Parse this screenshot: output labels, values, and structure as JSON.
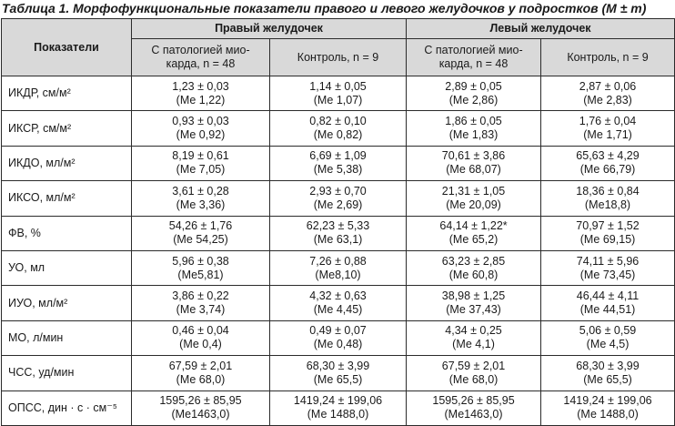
{
  "caption": "Таблица 1. Морфофункциональные показатели правого и левого желудочков у подростков (M ± m)",
  "header": {
    "indicators": "Показатели",
    "right_ventricle": "Правый желудочек",
    "left_ventricle": "Левый желудочек",
    "pathology_line1": "С патологией мио-",
    "pathology_line2": "карда, n = 48",
    "control": "Контроль, n = 9"
  },
  "rows": [
    {
      "label": "ИКДР, см/м²",
      "rv_path": [
        "1,23 ± 0,03",
        "(Ме 1,22)"
      ],
      "rv_ctrl": [
        "1,14 ± 0,05",
        "(Ме 1,07)"
      ],
      "lv_path": [
        "2,89 ± 0,05",
        "(Ме 2,86)"
      ],
      "lv_ctrl": [
        "2,87 ± 0,06",
        "(Ме 2,83)"
      ]
    },
    {
      "label": "ИКСР, см/м²",
      "rv_path": [
        "0,93 ± 0,03",
        "(Ме 0,92)"
      ],
      "rv_ctrl": [
        "0,82 ± 0,10",
        "(Ме 0,82)"
      ],
      "lv_path": [
        "1,86 ± 0,05",
        "(Ме 1,83)"
      ],
      "lv_ctrl": [
        "1,76 ± 0,04",
        "(Ме 1,71)"
      ]
    },
    {
      "label": "ИКДО, мл/м²",
      "rv_path": [
        "8,19 ± 0,61",
        "(Ме 7,05)"
      ],
      "rv_ctrl": [
        "6,69 ± 1,09",
        "(Ме 5,38)"
      ],
      "lv_path": [
        "70,61 ± 3,86",
        "(Ме 68,07)"
      ],
      "lv_ctrl": [
        "65,63 ± 4,29",
        "(Ме 66,79)"
      ]
    },
    {
      "label": "ИКСО, мл/м²",
      "rv_path": [
        "3,61 ± 0,28",
        "(Ме 3,36)"
      ],
      "rv_ctrl": [
        "2,93 ± 0,70",
        "(Ме 2,69)"
      ],
      "lv_path": [
        "21,31 ± 1,05",
        "(Ме 20,09)"
      ],
      "lv_ctrl": [
        "18,36 ± 0,84",
        "(Ме18,8)"
      ]
    },
    {
      "label": "ФВ, %",
      "rv_path": [
        "54,26 ± 1,76",
        "(Ме 54,25)"
      ],
      "rv_ctrl": [
        "62,23 ± 5,33",
        "(Ме 63,1)"
      ],
      "lv_path": [
        "64,14 ± 1,22*",
        "(Ме 65,2)"
      ],
      "lv_ctrl": [
        "70,97 ± 1,52",
        "(Ме 69,15)"
      ]
    },
    {
      "label": "УО, мл",
      "rv_path": [
        "5,96 ± 0,38",
        "(Ме5,81)"
      ],
      "rv_ctrl": [
        "7,26 ± 0,88",
        "(Ме8,10)"
      ],
      "lv_path": [
        "63,23 ± 2,85",
        "(Ме 60,8)"
      ],
      "lv_ctrl": [
        "74,11 ± 5,96",
        "(Ме 73,45)"
      ]
    },
    {
      "label": "ИУО, мл/м²",
      "rv_path": [
        "3,86 ± 0,22",
        "(Ме 3,74)"
      ],
      "rv_ctrl": [
        "4,32 ± 0,63",
        "(Ме 4,45)"
      ],
      "lv_path": [
        "38,98 ± 1,25",
        "(Ме 37,43)"
      ],
      "lv_ctrl": [
        "46,44 ± 4,11",
        "(Ме 44,51)"
      ]
    },
    {
      "label": "МО, л/мин",
      "rv_path": [
        "0,46 ± 0,04",
        "(Ме 0,4)"
      ],
      "rv_ctrl": [
        "0,49 ± 0,07",
        "(Ме 0,48)"
      ],
      "lv_path": [
        "4,34 ± 0,25",
        "(Ме 4,1)"
      ],
      "lv_ctrl": [
        "5,06 ± 0,59",
        "(Ме 4,5)"
      ]
    },
    {
      "label": "ЧСС, уд/мин",
      "rv_path": [
        "67,59 ± 2,01",
        "(Ме 68,0)"
      ],
      "rv_ctrl": [
        "68,30 ± 3,99",
        "(Ме 65,5)"
      ],
      "lv_path": [
        "67,59 ± 2,01",
        "(Ме 68,0)"
      ],
      "lv_ctrl": [
        "68,30 ± 3,99",
        "(Ме 65,5)"
      ]
    },
    {
      "label": "ОПСС, дин · с · см⁻⁵",
      "rv_path": [
        "1595,26 ± 85,95",
        "(Ме1463,0)"
      ],
      "rv_ctrl": [
        "1419,24 ± 199,06",
        "(Ме 1488,0)"
      ],
      "lv_path": [
        "1595,26 ± 85,95",
        "(Ме1463,0)"
      ],
      "lv_ctrl": [
        "1419,24 ± 199,06",
        "(Ме 1488,0)"
      ]
    }
  ]
}
